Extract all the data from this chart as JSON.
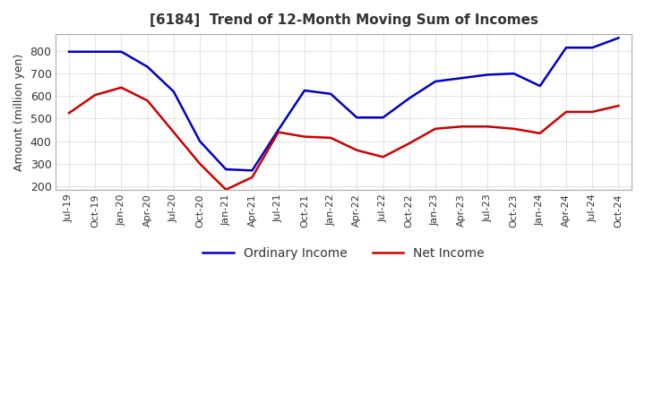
{
  "title": "[6184]  Trend of 12-Month Moving Sum of Incomes",
  "ylabel": "Amount (million yen)",
  "ylim": [
    185,
    875
  ],
  "yticks": [
    200,
    300,
    400,
    500,
    600,
    700,
    800
  ],
  "x_labels": [
    "Jul-19",
    "Oct-19",
    "Jan-20",
    "Apr-20",
    "Jul-20",
    "Oct-20",
    "Jan-21",
    "Apr-21",
    "Jul-21",
    "Oct-21",
    "Jan-22",
    "Apr-22",
    "Jul-22",
    "Oct-22",
    "Jan-23",
    "Apr-23",
    "Jul-23",
    "Oct-23",
    "Jan-24",
    "Apr-24",
    "Jul-24",
    "Oct-24"
  ],
  "ordinary_income": [
    797,
    797,
    797,
    730,
    620,
    400,
    275,
    270,
    450,
    625,
    610,
    505,
    505,
    590,
    665,
    680,
    695,
    700,
    645,
    815,
    815,
    858
  ],
  "net_income": [
    525,
    605,
    638,
    580,
    440,
    300,
    185,
    240,
    440,
    420,
    415,
    360,
    330,
    390,
    455,
    465,
    465,
    455,
    435,
    530,
    530,
    557
  ],
  "ordinary_color": "#0000cc",
  "net_color": "#cc0000",
  "line_width": 1.8,
  "title_color": "#333333",
  "grid_color": "#aaaaaa",
  "background_color": "#ffffff",
  "legend_labels": [
    "Ordinary Income",
    "Net Income"
  ]
}
